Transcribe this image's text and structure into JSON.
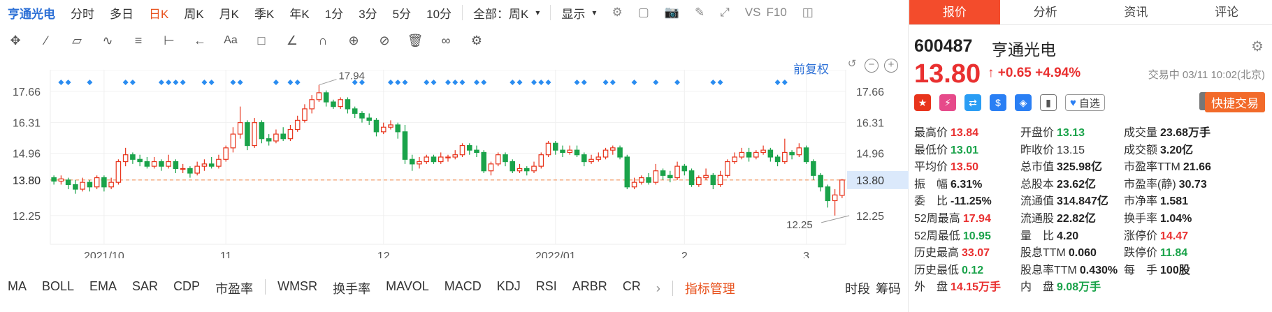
{
  "toolbar": {
    "title": "亨通光电",
    "periods": [
      "分时",
      "多日",
      "日K",
      "周K",
      "月K",
      "季K",
      "年K",
      "1分",
      "3分",
      "5分",
      "10分"
    ],
    "active_period": "日K",
    "scope": "全部：周K",
    "display": "显示",
    "vs": "VS",
    "f10": "F10"
  },
  "fuquan": "前复权",
  "indicators": [
    "MA",
    "BOLL",
    "EMA",
    "SAR",
    "CDP",
    "市盈率",
    "WMSR",
    "换手率",
    "MAVOL",
    "MACD",
    "KDJ",
    "RSI",
    "ARBR",
    "CR"
  ],
  "indicator_manage": "指标管理",
  "bottom_right": [
    "时段",
    "筹码"
  ],
  "tabs": [
    "报价",
    "分析",
    "资讯",
    "评论"
  ],
  "quote": {
    "code": "600487",
    "name": "亨通光电",
    "price": "13.80",
    "change": "+0.65",
    "change_pct": "+4.94%",
    "status_time": "交易中 03/11 10:02(北京)",
    "zixuan": "自选",
    "quick_trade": "快捷交易"
  },
  "stats": [
    [
      {
        "l": "最高价",
        "v": "13.84",
        "c": "red"
      },
      {
        "l": "开盘价",
        "v": "13.13",
        "c": "grn"
      },
      {
        "l": "成交量",
        "v": "23.68万手",
        "c": "blk"
      }
    ],
    [
      {
        "l": "最低价",
        "v": "13.01",
        "c": "grn"
      },
      {
        "l": "昨收价",
        "v": "13.15",
        "c": "lab"
      },
      {
        "l": "成交额",
        "v": "3.20亿",
        "c": "blk"
      }
    ],
    [
      {
        "l": "平均价",
        "v": "13.50",
        "c": "red"
      },
      {
        "l": "总市值",
        "v": "325.98亿",
        "c": "blk"
      },
      {
        "l": "市盈率TTM",
        "v": "21.66",
        "c": "blk"
      }
    ],
    [
      {
        "l": "振　幅",
        "v": "6.31%",
        "c": "blk"
      },
      {
        "l": "总股本",
        "v": "23.62亿",
        "c": "blk"
      },
      {
        "l": "市盈率(静)",
        "v": "30.73",
        "c": "blk"
      }
    ],
    [
      {
        "l": "委　比",
        "v": "-11.25%",
        "c": "blk"
      },
      {
        "l": "流通值",
        "v": "314.847亿",
        "c": "blk"
      },
      {
        "l": "市净率",
        "v": "1.581",
        "c": "blk"
      }
    ],
    [
      {
        "l": "52周最高",
        "v": "17.94",
        "c": "red"
      },
      {
        "l": "流通股",
        "v": "22.82亿",
        "c": "blk"
      },
      {
        "l": "换手率",
        "v": "1.04%",
        "c": "blk"
      }
    ],
    [
      {
        "l": "52周最低",
        "v": "10.95",
        "c": "grn"
      },
      {
        "l": "量　比",
        "v": "4.20",
        "c": "blk"
      },
      {
        "l": "涨停价",
        "v": "14.47",
        "c": "red"
      }
    ],
    [
      {
        "l": "历史最高",
        "v": "33.07",
        "c": "red"
      },
      {
        "l": "股息TTM",
        "v": "0.060",
        "c": "blk"
      },
      {
        "l": "跌停价",
        "v": "11.84",
        "c": "grn"
      }
    ],
    [
      {
        "l": "历史最低",
        "v": "0.12",
        "c": "grn"
      },
      {
        "l": "股息率TTM",
        "v": "0.430%",
        "c": "blk"
      },
      {
        "l": "每　手",
        "v": "100股",
        "c": "blk"
      }
    ],
    [
      {
        "l": "外　盘",
        "v": "14.15万手",
        "c": "red"
      },
      {
        "l": "内　盘",
        "v": "9.08万手",
        "c": "grn"
      },
      {
        "l": "",
        "v": "",
        "c": "blk"
      }
    ]
  ],
  "chart_data": {
    "type": "candlestick",
    "y_ticks": [
      17.66,
      16.31,
      14.96,
      13.8,
      12.25
    ],
    "ylim": [
      11.0,
      18.6
    ],
    "x_ticks": [
      {
        "label": "2021/10",
        "i": 7
      },
      {
        "label": "11",
        "i": 24
      },
      {
        "label": "12",
        "i": 46
      },
      {
        "label": "2022/01",
        "i": 70
      },
      {
        "label": "2",
        "i": 88
      },
      {
        "label": "3",
        "i": 105
      }
    ],
    "current_price": 13.8,
    "high_label": {
      "value": 17.94,
      "i": 37
    },
    "low_label": {
      "value": 12.25,
      "i": 111
    },
    "candles": [
      [
        13.9,
        13.75,
        14.0,
        13.6
      ],
      [
        13.75,
        13.85,
        14.0,
        13.6
      ],
      [
        13.8,
        13.6,
        13.9,
        13.4
      ],
      [
        13.6,
        13.4,
        13.8,
        13.2
      ],
      [
        13.4,
        13.7,
        13.9,
        13.3
      ],
      [
        13.7,
        13.5,
        13.8,
        13.3
      ],
      [
        13.5,
        13.9,
        14.0,
        13.4
      ],
      [
        13.9,
        13.5,
        14.0,
        13.3
      ],
      [
        13.5,
        13.7,
        13.9,
        13.4
      ],
      [
        13.7,
        14.6,
        14.7,
        13.6
      ],
      [
        14.6,
        14.9,
        15.2,
        14.4
      ],
      [
        14.9,
        14.7,
        15.0,
        14.5
      ],
      [
        14.7,
        14.6,
        14.9,
        14.4
      ],
      [
        14.6,
        14.4,
        14.8,
        14.3
      ],
      [
        14.4,
        14.6,
        14.8,
        14.3
      ],
      [
        14.6,
        14.4,
        14.7,
        14.2
      ],
      [
        14.4,
        14.6,
        14.9,
        14.3
      ],
      [
        14.6,
        14.3,
        14.7,
        14.1
      ],
      [
        14.3,
        14.3,
        14.5,
        14.1
      ],
      [
        14.3,
        14.1,
        14.4,
        13.9
      ],
      [
        14.1,
        14.4,
        14.6,
        14.0
      ],
      [
        14.4,
        14.5,
        14.7,
        14.2
      ],
      [
        14.5,
        14.4,
        14.8,
        14.3
      ],
      [
        14.4,
        14.7,
        14.9,
        14.3
      ],
      [
        14.7,
        15.2,
        15.3,
        14.6
      ],
      [
        15.2,
        15.8,
        16.1,
        15.0
      ],
      [
        15.8,
        16.3,
        17.0,
        15.6
      ],
      [
        16.3,
        15.3,
        16.4,
        15.1
      ],
      [
        15.3,
        16.3,
        16.5,
        15.2
      ],
      [
        16.3,
        15.6,
        16.4,
        15.4
      ],
      [
        15.6,
        15.5,
        15.8,
        15.3
      ],
      [
        15.5,
        15.8,
        16.0,
        15.4
      ],
      [
        15.8,
        15.6,
        16.1,
        15.5
      ],
      [
        15.6,
        16.0,
        16.2,
        15.5
      ],
      [
        16.0,
        16.4,
        16.6,
        15.9
      ],
      [
        16.4,
        16.9,
        17.1,
        16.3
      ],
      [
        16.9,
        17.3,
        17.5,
        16.7
      ],
      [
        17.3,
        17.6,
        17.94,
        17.2
      ],
      [
        17.6,
        17.2,
        17.7,
        17.0
      ],
      [
        17.2,
        17.0,
        17.3,
        16.9
      ],
      [
        17.0,
        17.3,
        17.4,
        16.9
      ],
      [
        17.3,
        16.9,
        17.4,
        16.7
      ],
      [
        16.9,
        16.7,
        17.0,
        16.5
      ],
      [
        16.7,
        16.5,
        16.8,
        16.3
      ],
      [
        16.5,
        16.4,
        16.7,
        16.2
      ],
      [
        16.4,
        15.9,
        16.5,
        15.7
      ],
      [
        15.9,
        16.1,
        16.3,
        15.8
      ],
      [
        16.1,
        16.2,
        16.4,
        16.0
      ],
      [
        16.2,
        15.9,
        16.3,
        15.6
      ],
      [
        15.9,
        14.7,
        16.2,
        14.5
      ],
      [
        14.7,
        14.5,
        14.9,
        14.2
      ],
      [
        14.5,
        14.6,
        14.8,
        14.3
      ],
      [
        14.6,
        14.8,
        14.9,
        14.5
      ],
      [
        14.8,
        14.6,
        14.9,
        14.5
      ],
      [
        14.6,
        14.8,
        15.0,
        14.5
      ],
      [
        14.8,
        14.8,
        14.9,
        14.6
      ],
      [
        14.8,
        14.9,
        15.1,
        14.7
      ],
      [
        14.9,
        15.3,
        15.4,
        14.8
      ],
      [
        15.3,
        15.1,
        15.4,
        14.9
      ],
      [
        15.1,
        15.0,
        15.3,
        14.8
      ],
      [
        15.0,
        14.2,
        15.1,
        14.1
      ],
      [
        14.2,
        14.5,
        14.6,
        14.0
      ],
      [
        14.5,
        14.9,
        15.0,
        14.4
      ],
      [
        14.9,
        14.6,
        15.0,
        14.4
      ],
      [
        14.6,
        14.2,
        14.7,
        14.1
      ],
      [
        14.2,
        14.3,
        14.5,
        14.1
      ],
      [
        14.3,
        14.2,
        14.4,
        14.0
      ],
      [
        14.2,
        14.4,
        14.6,
        14.1
      ],
      [
        14.4,
        14.9,
        15.0,
        14.3
      ],
      [
        14.9,
        15.4,
        15.5,
        14.8
      ],
      [
        15.4,
        15.1,
        15.5,
        14.9
      ],
      [
        15.1,
        15.0,
        15.3,
        14.8
      ],
      [
        15.0,
        15.1,
        15.3,
        14.9
      ],
      [
        15.1,
        14.9,
        15.3,
        14.8
      ],
      [
        14.9,
        14.6,
        15.0,
        14.4
      ],
      [
        14.6,
        14.7,
        14.9,
        14.5
      ],
      [
        14.7,
        14.8,
        15.0,
        14.6
      ],
      [
        14.8,
        15.1,
        15.2,
        14.7
      ],
      [
        15.1,
        15.2,
        15.3,
        14.9
      ],
      [
        15.2,
        14.8,
        15.3,
        14.7
      ],
      [
        14.8,
        13.5,
        14.9,
        13.4
      ],
      [
        13.5,
        13.7,
        13.9,
        13.4
      ],
      [
        13.7,
        13.9,
        14.0,
        13.6
      ],
      [
        13.9,
        13.7,
        14.1,
        13.6
      ],
      [
        13.7,
        14.2,
        14.5,
        13.6
      ],
      [
        14.2,
        14.0,
        14.3,
        13.8
      ],
      [
        14.0,
        13.9,
        14.2,
        13.7
      ],
      [
        13.9,
        14.4,
        14.6,
        13.8
      ],
      [
        14.4,
        14.2,
        14.5,
        14.0
      ],
      [
        14.2,
        13.6,
        14.3,
        13.5
      ],
      [
        13.6,
        13.9,
        14.0,
        13.5
      ],
      [
        13.9,
        14.0,
        14.3,
        13.8
      ],
      [
        14.0,
        13.6,
        14.1,
        13.4
      ],
      [
        13.6,
        14.0,
        14.2,
        13.5
      ],
      [
        14.0,
        14.6,
        14.7,
        13.9
      ],
      [
        14.6,
        14.8,
        15.0,
        14.5
      ],
      [
        14.8,
        15.0,
        15.2,
        14.7
      ],
      [
        15.0,
        14.8,
        15.2,
        14.6
      ],
      [
        14.8,
        15.0,
        15.1,
        14.7
      ],
      [
        15.0,
        15.1,
        15.3,
        14.9
      ],
      [
        15.1,
        14.8,
        15.2,
        14.6
      ],
      [
        14.8,
        14.6,
        14.9,
        14.4
      ],
      [
        14.6,
        15.0,
        15.6,
        14.5
      ],
      [
        15.0,
        14.9,
        15.1,
        14.7
      ],
      [
        14.9,
        15.2,
        15.4,
        14.8
      ],
      [
        15.2,
        14.6,
        15.3,
        14.5
      ],
      [
        14.6,
        14.0,
        14.7,
        13.8
      ],
      [
        14.0,
        13.5,
        14.1,
        13.3
      ],
      [
        13.5,
        12.9,
        13.6,
        12.6
      ],
      [
        12.9,
        13.15,
        13.4,
        12.25
      ],
      [
        13.13,
        13.8,
        13.84,
        13.01
      ]
    ],
    "signal_dots": [
      1,
      2,
      5,
      10,
      11,
      15,
      16,
      17,
      18,
      21,
      22,
      25,
      26,
      31,
      33,
      34,
      42,
      43,
      47,
      48,
      49,
      52,
      53,
      55,
      56,
      57,
      59,
      60,
      64,
      65,
      67,
      68,
      69,
      73,
      74,
      77,
      78,
      81,
      84,
      87,
      92,
      93,
      101,
      102
    ]
  }
}
